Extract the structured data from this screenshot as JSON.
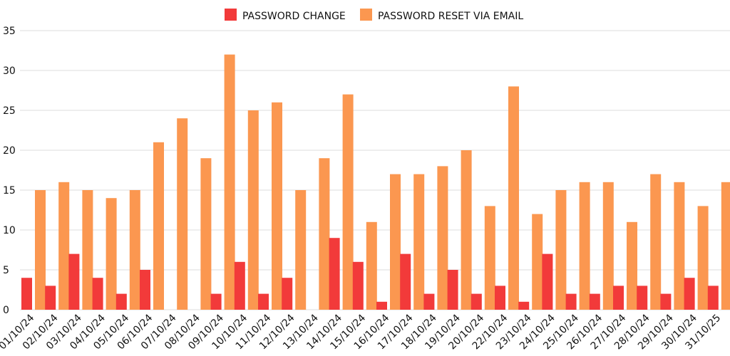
{
  "chart_data": {
    "type": "bar",
    "title": "",
    "xlabel": "",
    "ylabel": "",
    "ylim": [
      0,
      35
    ],
    "yticks": [
      0,
      5,
      10,
      15,
      20,
      25,
      30,
      35
    ],
    "grid": true,
    "legend_position": "top-center",
    "categories": [
      "01/10/24",
      "02/10/24",
      "03/10/24",
      "04/10/24",
      "05/10/24",
      "06/10/24",
      "07/10/24",
      "08/10/24",
      "09/10/24",
      "10/10/24",
      "11/10/24",
      "12/10/24",
      "13/10/24",
      "14/10/24",
      "15/10/24",
      "16/10/24",
      "17/10/24",
      "18/10/24",
      "19/10/24",
      "20/10/24",
      "22/10/24",
      "23/10/24",
      "24/10/24",
      "25/10/24",
      "26/10/24",
      "27/10/24",
      "28/10/24",
      "29/10/24",
      "30/10/24",
      "31/10/25"
    ],
    "series": [
      {
        "name": "PASSWORD CHANGE",
        "color": "#f23a3a",
        "values": [
          4,
          3,
          7,
          4,
          2,
          5,
          0,
          0,
          2,
          6,
          2,
          4,
          0,
          9,
          6,
          1,
          7,
          2,
          5,
          2,
          3,
          1,
          7,
          2,
          2,
          3,
          3,
          2,
          4,
          3
        ]
      },
      {
        "name": "PASSWORD RESET VIA EMAIL",
        "color": "#fb9750",
        "values": [
          15,
          16,
          15,
          14,
          15,
          21,
          24,
          19,
          32,
          25,
          26,
          15,
          19,
          27,
          11,
          17,
          17,
          18,
          20,
          13,
          28,
          12,
          15,
          16,
          16,
          11,
          17,
          16,
          13,
          16
        ]
      }
    ]
  }
}
